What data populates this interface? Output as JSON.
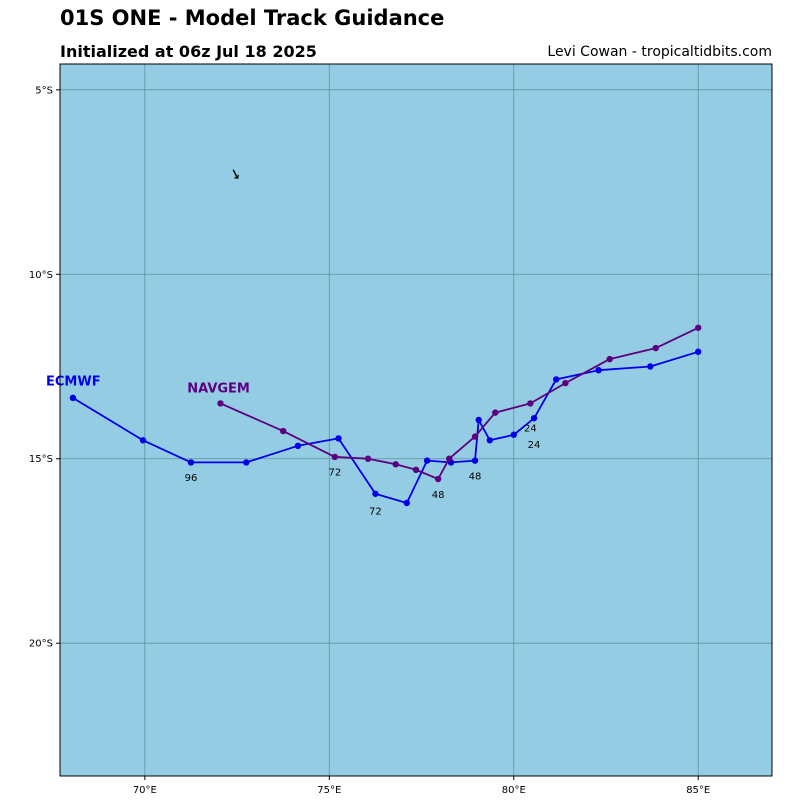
{
  "header": {
    "title": "01S ONE - Model Track Guidance",
    "subtitle": "Initialized at 06z Jul 18 2025",
    "credit": "Levi Cowan - tropicaltidbits.com"
  },
  "colors": {
    "ocean": "#94cde3",
    "grid": "#5f8fa0",
    "ecmwf": "#0000e6",
    "navgem": "#5c0080"
  },
  "map": {
    "lon_range": [
      67.7,
      87.0
    ],
    "lat_range": [
      -4.3,
      -23.6
    ],
    "lon_ticks": [
      {
        "value": 70,
        "label": "70°E"
      },
      {
        "value": 75,
        "label": "75°E"
      },
      {
        "value": 80,
        "label": "80°E"
      },
      {
        "value": 85,
        "label": "85°E"
      }
    ],
    "lat_ticks": [
      {
        "value": -5,
        "label": "5°S"
      },
      {
        "value": -10,
        "label": "10°S"
      },
      {
        "value": -15,
        "label": "15°S"
      },
      {
        "value": -20,
        "label": "20°S"
      }
    ]
  },
  "tracks": [
    {
      "name": "ECMWF",
      "color": "#0000e6",
      "label_point": {
        "lon": 67.7,
        "lat": -12.9
      },
      "points": [
        {
          "lon": 85.0,
          "lat": -12.1
        },
        {
          "lon": 83.7,
          "lat": -12.5
        },
        {
          "lon": 82.3,
          "lat": -12.6
        },
        {
          "lon": 81.15,
          "lat": -12.85
        },
        {
          "lon": 80.55,
          "lat": -13.9
        },
        {
          "lon": 80.0,
          "lat": -14.35
        },
        {
          "lon": 79.35,
          "lat": -14.5
        },
        {
          "lon": 79.05,
          "lat": -13.95
        },
        {
          "lon": 78.95,
          "lat": -15.05
        },
        {
          "lon": 78.3,
          "lat": -15.1
        },
        {
          "lon": 77.65,
          "lat": -15.05
        },
        {
          "lon": 77.1,
          "lat": -16.2
        },
        {
          "lon": 76.25,
          "lat": -15.95
        },
        {
          "lon": 75.25,
          "lat": -14.45
        },
        {
          "lon": 74.15,
          "lat": -14.65
        },
        {
          "lon": 72.75,
          "lat": -15.1
        },
        {
          "lon": 71.25,
          "lat": -15.1
        },
        {
          "lon": 69.95,
          "lat": -14.5
        },
        {
          "lon": 68.05,
          "lat": -13.35
        }
      ],
      "hour_labels": [
        {
          "text": "24",
          "lon": 80.55,
          "lat": -14.6
        },
        {
          "text": "48",
          "lon": 78.95,
          "lat": -15.45
        },
        {
          "text": "72",
          "lon": 76.25,
          "lat": -16.4
        },
        {
          "text": "96",
          "lon": 71.25,
          "lat": -15.5
        }
      ]
    },
    {
      "name": "NAVGEM",
      "color": "#5c0080",
      "label_point": {
        "lon": 71.15,
        "lat": -13.1
      },
      "points": [
        {
          "lon": 85.0,
          "lat": -11.45
        },
        {
          "lon": 83.85,
          "lat": -12.0
        },
        {
          "lon": 82.6,
          "lat": -12.3
        },
        {
          "lon": 81.4,
          "lat": -12.95
        },
        {
          "lon": 80.45,
          "lat": -13.5
        },
        {
          "lon": 79.5,
          "lat": -13.75
        },
        {
          "lon": 78.95,
          "lat": -14.4
        },
        {
          "lon": 78.25,
          "lat": -15.0
        },
        {
          "lon": 77.95,
          "lat": -15.55
        },
        {
          "lon": 77.35,
          "lat": -15.3
        },
        {
          "lon": 76.8,
          "lat": -15.15
        },
        {
          "lon": 76.05,
          "lat": -15.0
        },
        {
          "lon": 75.15,
          "lat": -14.95
        },
        {
          "lon": 73.75,
          "lat": -14.25
        },
        {
          "lon": 72.05,
          "lat": -13.5
        }
      ],
      "hour_labels": [
        {
          "text": "24",
          "lon": 80.45,
          "lat": -14.15
        },
        {
          "text": "48",
          "lon": 77.95,
          "lat": -15.95
        },
        {
          "text": "72",
          "lon": 75.15,
          "lat": -15.35
        }
      ]
    }
  ],
  "arrow_marker": {
    "lon": 72.45,
    "lat": -7.3
  }
}
